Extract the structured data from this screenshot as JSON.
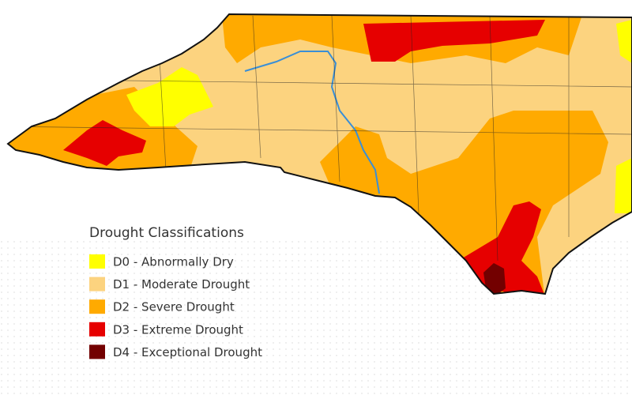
{
  "legend": {
    "title": "Drought Classifications",
    "items": [
      {
        "label": "D0 - Abnormally Dry",
        "color": "#ffff00"
      },
      {
        "label": "D1 - Moderate Drought",
        "color": "#fcd37f"
      },
      {
        "label": "D2 - Severe Drought",
        "color": "#ffaa00"
      },
      {
        "label": "D3 - Extreme Drought",
        "color": "#e60000"
      },
      {
        "label": "D4 - Exceptional Drought",
        "color": "#730000"
      }
    ]
  }
}
